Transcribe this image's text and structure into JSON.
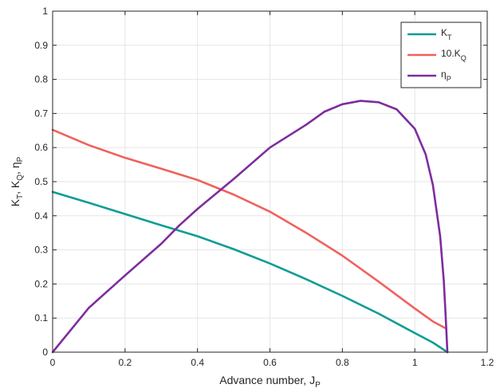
{
  "chart_data": {
    "type": "line",
    "xlabel": "Advance number, J",
    "xlabel_sub": "P",
    "ylabel_parts": [
      {
        "text": "K",
        "sub": "T"
      },
      {
        "text": ", K",
        "sub": "Q"
      },
      {
        "text": ", η",
        "sub": "P"
      }
    ],
    "xlim": [
      0,
      1.2
    ],
    "ylim": [
      0,
      1
    ],
    "xticks": [
      0,
      0.2,
      0.4,
      0.6,
      0.8,
      1,
      1.2
    ],
    "yticks": [
      0,
      0.1,
      0.2,
      0.3,
      0.4,
      0.5,
      0.6,
      0.7,
      0.8,
      0.9,
      1
    ],
    "xtick_labels": [
      "0",
      "0.2",
      "0.4",
      "0.6",
      "0.8",
      "1",
      "1.2"
    ],
    "ytick_labels": [
      "0",
      "0.1",
      "0.2",
      "0.3",
      "0.4",
      "0.5",
      "0.6",
      "0.7",
      "0.8",
      "0.9",
      "1"
    ],
    "grid": true,
    "legend_position": "top-right",
    "series": [
      {
        "name": "K",
        "name_sub": "T",
        "color": "#0e9c96",
        "x": [
          0,
          0.1,
          0.2,
          0.3,
          0.4,
          0.5,
          0.6,
          0.7,
          0.8,
          0.9,
          1.0,
          1.05,
          1.09
        ],
        "y": [
          0.47,
          0.438,
          0.405,
          0.372,
          0.34,
          0.302,
          0.26,
          0.214,
          0.165,
          0.113,
          0.056,
          0.028,
          0.0
        ]
      },
      {
        "name": "10.K",
        "name_sub": "Q",
        "color": "#f0615d",
        "x": [
          0,
          0.1,
          0.2,
          0.3,
          0.4,
          0.5,
          0.6,
          0.7,
          0.8,
          0.9,
          1.0,
          1.05,
          1.085
        ],
        "y": [
          0.652,
          0.607,
          0.57,
          0.538,
          0.505,
          0.462,
          0.412,
          0.35,
          0.283,
          0.207,
          0.128,
          0.09,
          0.07
        ]
      },
      {
        "name": "η",
        "name_sub": "P",
        "color": "#7e2c9e",
        "x": [
          0,
          0.05,
          0.1,
          0.2,
          0.3,
          0.35,
          0.4,
          0.5,
          0.6,
          0.7,
          0.75,
          0.8,
          0.85,
          0.9,
          0.95,
          1.0,
          1.03,
          1.05,
          1.07,
          1.08,
          1.085,
          1.09
        ],
        "y": [
          0,
          0.065,
          0.13,
          0.225,
          0.318,
          0.372,
          0.42,
          0.508,
          0.6,
          0.667,
          0.705,
          0.727,
          0.737,
          0.733,
          0.712,
          0.655,
          0.58,
          0.49,
          0.34,
          0.21,
          0.11,
          0.0
        ]
      }
    ]
  }
}
